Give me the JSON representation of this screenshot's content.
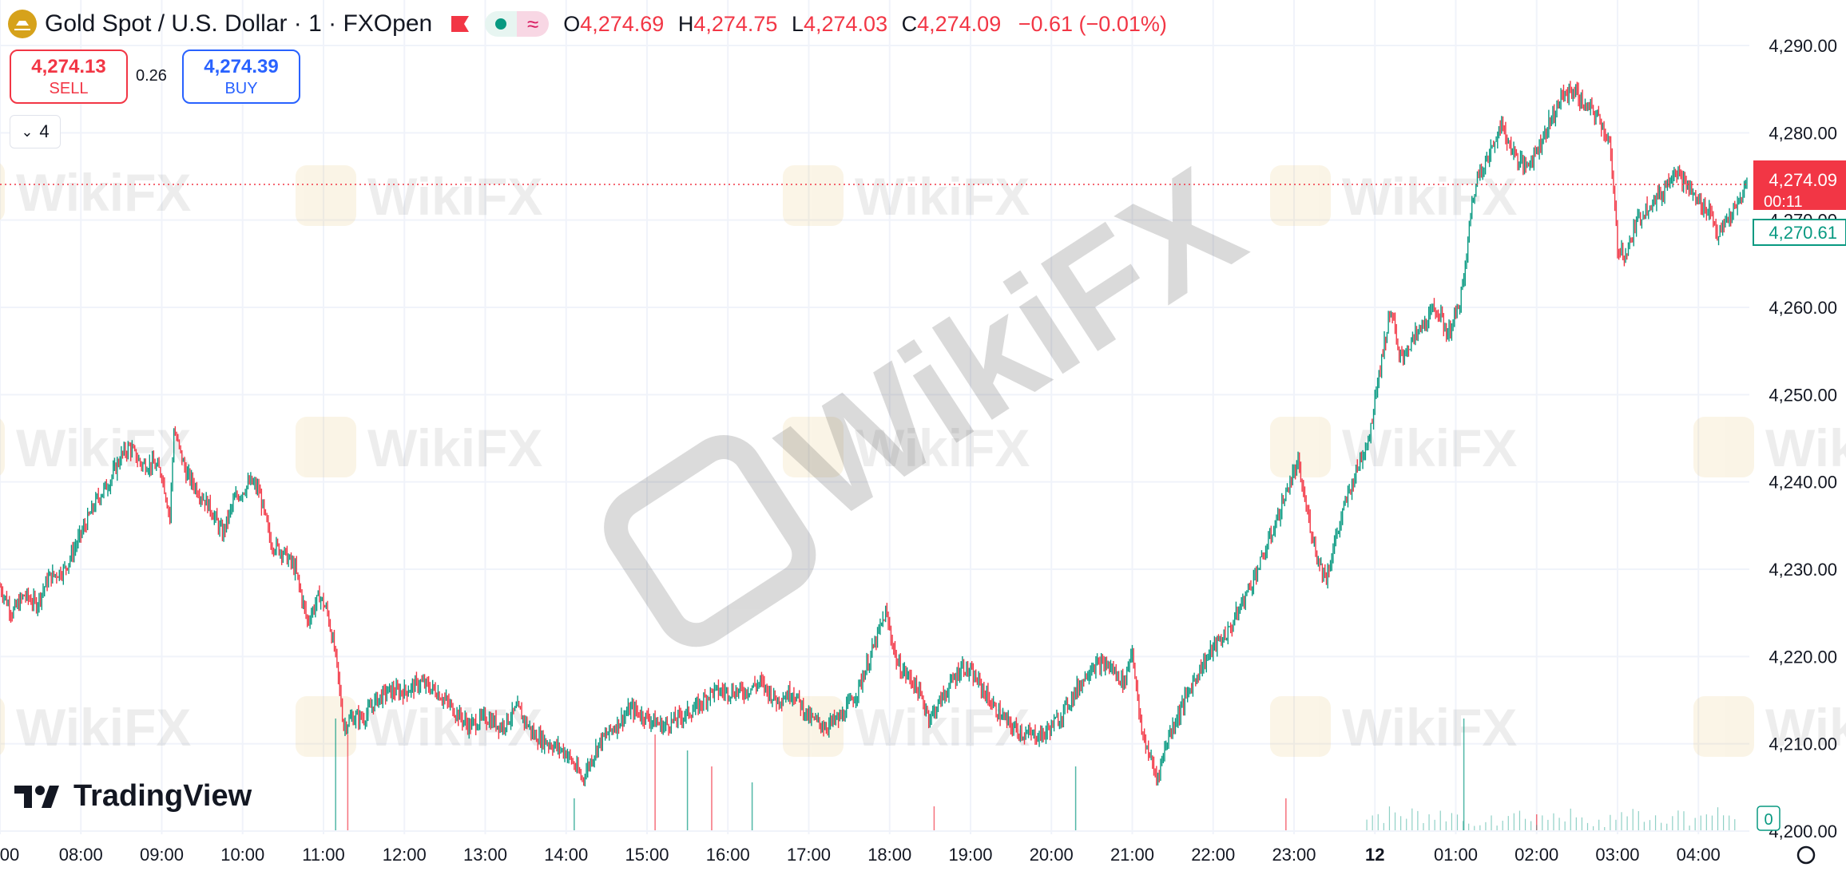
{
  "header": {
    "symbol_title": "Gold Spot / U.S. Dollar · 1 · FXOpen",
    "ohlc": {
      "o_label": "O",
      "o_value": "4,274.69",
      "h_label": "H",
      "h_value": "4,274.75",
      "l_label": "L",
      "l_value": "4,274.03",
      "c_label": "C",
      "c_value": "4,274.09",
      "change": "−0.61 (−0.01%)"
    }
  },
  "trade": {
    "sell_price": "4,274.13",
    "sell_label": "SELL",
    "spread": "0.26",
    "buy_price": "4,274.39",
    "buy_label": "BUY"
  },
  "indicators_count": "4",
  "watermark_text": "WikiFX",
  "branding": "TradingView",
  "colors": {
    "up": "#089981",
    "down": "#f23645",
    "grid": "#f0f3fa",
    "text": "#131722"
  },
  "chart_data": {
    "type": "candlestick",
    "ylim": [
      4196,
      4294
    ],
    "y_ticks": [
      "4,290.00",
      "4,280.00",
      "4,270.00",
      "4,260.00",
      "4,250.00",
      "4,240.00",
      "4,230.00",
      "4,220.00",
      "4,210.00",
      "4,200.00"
    ],
    "x_ticks": [
      "00",
      "08:00",
      "09:00",
      "10:00",
      "11:00",
      "12:00",
      "13:00",
      "14:00",
      "15:00",
      "16:00",
      "17:00",
      "18:00",
      "19:00",
      "20:00",
      "21:00",
      "22:00",
      "23:00",
      "12",
      "01:00",
      "02:00",
      "03:00",
      "04:00"
    ],
    "x_tick_hours": [
      7,
      8,
      9,
      10,
      11,
      12,
      13,
      14,
      15,
      16,
      17,
      18,
      19,
      20,
      21,
      22,
      23,
      24,
      25,
      26,
      27,
      28
    ],
    "x_range_hours": [
      7,
      28.63
    ],
    "close_path": [
      [
        7.0,
        4228
      ],
      [
        7.15,
        4225
      ],
      [
        7.3,
        4227
      ],
      [
        7.45,
        4226
      ],
      [
        7.6,
        4229
      ],
      [
        7.8,
        4230
      ],
      [
        8.0,
        4234
      ],
      [
        8.2,
        4238
      ],
      [
        8.35,
        4240
      ],
      [
        8.5,
        4243
      ],
      [
        8.6,
        4244
      ],
      [
        8.75,
        4242
      ],
      [
        8.9,
        4242
      ],
      [
        9.0,
        4241
      ],
      [
        9.1,
        4236
      ],
      [
        9.15,
        4246
      ],
      [
        9.3,
        4241
      ],
      [
        9.45,
        4239
      ],
      [
        9.6,
        4237
      ],
      [
        9.75,
        4234
      ],
      [
        9.9,
        4238
      ],
      [
        10.0,
        4239
      ],
      [
        10.1,
        4240
      ],
      [
        10.2,
        4239
      ],
      [
        10.35,
        4233
      ],
      [
        10.5,
        4232
      ],
      [
        10.65,
        4230
      ],
      [
        10.8,
        4224
      ],
      [
        10.95,
        4227
      ],
      [
        11.05,
        4225
      ],
      [
        11.15,
        4220
      ],
      [
        11.25,
        4212
      ],
      [
        11.35,
        4213
      ],
      [
        11.5,
        4213
      ],
      [
        11.65,
        4215
      ],
      [
        11.8,
        4216
      ],
      [
        12.0,
        4216
      ],
      [
        12.2,
        4217
      ],
      [
        12.4,
        4216
      ],
      [
        12.6,
        4214
      ],
      [
        12.8,
        4212
      ],
      [
        13.0,
        4213
      ],
      [
        13.2,
        4212
      ],
      [
        13.4,
        4214
      ],
      [
        13.6,
        4211
      ],
      [
        13.8,
        4210
      ],
      [
        14.0,
        4209
      ],
      [
        14.2,
        4206
      ],
      [
        14.4,
        4210
      ],
      [
        14.6,
        4212
      ],
      [
        14.8,
        4214
      ],
      [
        15.0,
        4213
      ],
      [
        15.2,
        4212
      ],
      [
        15.4,
        4213
      ],
      [
        15.6,
        4214
      ],
      [
        15.8,
        4216
      ],
      [
        16.0,
        4216
      ],
      [
        16.2,
        4216
      ],
      [
        16.4,
        4217
      ],
      [
        16.6,
        4215
      ],
      [
        16.8,
        4216
      ],
      [
        17.0,
        4213
      ],
      [
        17.2,
        4212
      ],
      [
        17.4,
        4213
      ],
      [
        17.6,
        4216
      ],
      [
        17.8,
        4221
      ],
      [
        17.95,
        4225
      ],
      [
        18.1,
        4219
      ],
      [
        18.3,
        4217
      ],
      [
        18.5,
        4213
      ],
      [
        18.7,
        4216
      ],
      [
        18.9,
        4219
      ],
      [
        19.1,
        4217
      ],
      [
        19.3,
        4214
      ],
      [
        19.5,
        4212
      ],
      [
        19.7,
        4211
      ],
      [
        19.9,
        4211
      ],
      [
        20.1,
        4213
      ],
      [
        20.3,
        4216
      ],
      [
        20.5,
        4219
      ],
      [
        20.7,
        4219
      ],
      [
        20.9,
        4217
      ],
      [
        21.0,
        4221
      ],
      [
        21.1,
        4212
      ],
      [
        21.2,
        4209
      ],
      [
        21.3,
        4206
      ],
      [
        21.45,
        4211
      ],
      [
        21.6,
        4214
      ],
      [
        21.8,
        4218
      ],
      [
        22.0,
        4221
      ],
      [
        22.2,
        4223
      ],
      [
        22.4,
        4227
      ],
      [
        22.6,
        4231
      ],
      [
        22.8,
        4236
      ],
      [
        22.95,
        4240
      ],
      [
        23.05,
        4242
      ],
      [
        23.15,
        4237
      ],
      [
        23.3,
        4231
      ],
      [
        23.4,
        4229
      ],
      [
        23.5,
        4233
      ],
      [
        23.65,
        4238
      ],
      [
        23.8,
        4242
      ],
      [
        23.95,
        4246
      ],
      [
        24.0,
        4250
      ],
      [
        24.1,
        4255
      ],
      [
        24.2,
        4260
      ],
      [
        24.3,
        4254
      ],
      [
        24.45,
        4256
      ],
      [
        24.6,
        4258
      ],
      [
        24.75,
        4260
      ],
      [
        24.9,
        4257
      ],
      [
        25.0,
        4259
      ],
      [
        25.1,
        4263
      ],
      [
        25.2,
        4272
      ],
      [
        25.3,
        4276
      ],
      [
        25.4,
        4277
      ],
      [
        25.55,
        4281
      ],
      [
        25.7,
        4278
      ],
      [
        25.85,
        4276
      ],
      [
        26.0,
        4278
      ],
      [
        26.15,
        4281
      ],
      [
        26.3,
        4284
      ],
      [
        26.45,
        4285
      ],
      [
        26.6,
        4283
      ],
      [
        26.75,
        4282
      ],
      [
        26.9,
        4279
      ],
      [
        26.95,
        4273
      ],
      [
        27.0,
        4267
      ],
      [
        27.1,
        4266
      ],
      [
        27.25,
        4270
      ],
      [
        27.4,
        4272
      ],
      [
        27.55,
        4273
      ],
      [
        27.7,
        4276
      ],
      [
        27.85,
        4274
      ],
      [
        28.0,
        4272
      ],
      [
        28.15,
        4271
      ],
      [
        28.25,
        4268
      ],
      [
        28.35,
        4270
      ],
      [
        28.45,
        4271
      ],
      [
        28.6,
        4274.09
      ]
    ],
    "volume_spikes": [
      [
        11.15,
        7
      ],
      [
        11.3,
        6
      ],
      [
        14.1,
        2
      ],
      [
        15.1,
        6
      ],
      [
        15.5,
        5
      ],
      [
        15.8,
        4
      ],
      [
        16.3,
        3
      ],
      [
        18.55,
        1.5
      ],
      [
        20.3,
        4
      ],
      [
        22.9,
        2
      ],
      [
        25.1,
        7
      ],
      [
        26.0,
        1
      ]
    ],
    "last_price_label": "4,274.09",
    "countdown": "00:11",
    "second_price_label": "4,270.61",
    "second_price_value": 4270.61,
    "volume_axis_label": "0"
  }
}
